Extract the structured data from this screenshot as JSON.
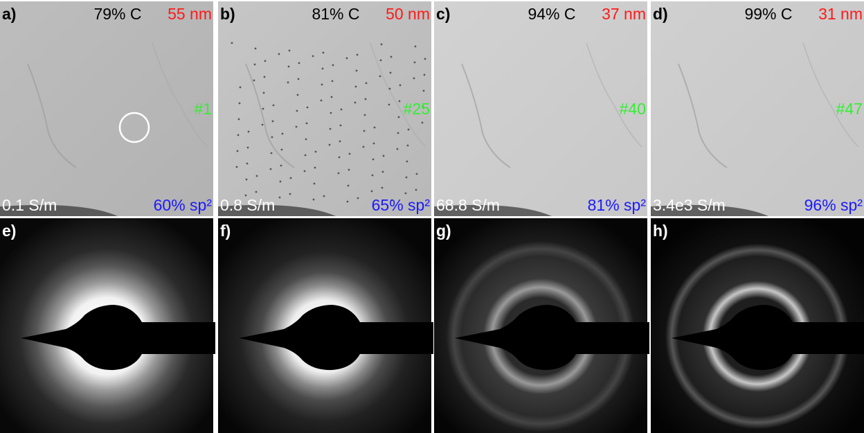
{
  "panels": [
    {
      "label": "a)",
      "carbon": "79% C",
      "thickness": "55 nm",
      "sample": "#1",
      "conductivity": "0.1 S/m",
      "sp2": "60% sp²"
    },
    {
      "label": "b)",
      "carbon": "81% C",
      "thickness": "50 nm",
      "sample": "#25",
      "conductivity": "0.8 S/m",
      "sp2": "65% sp²"
    },
    {
      "label": "c)",
      "carbon": "94% C",
      "thickness": "37 nm",
      "sample": "#40",
      "conductivity": "68.8 S/m",
      "sp2": "81% sp²"
    },
    {
      "label": "d)",
      "carbon": "99% C",
      "thickness": "31 nm",
      "sample": "#47",
      "conductivity": "3.4e3 S/m",
      "sp2": "96% sp²"
    }
  ],
  "diffraction": [
    {
      "label": "e)"
    },
    {
      "label": "f)"
    },
    {
      "label": "g)"
    },
    {
      "label": "h)"
    }
  ]
}
